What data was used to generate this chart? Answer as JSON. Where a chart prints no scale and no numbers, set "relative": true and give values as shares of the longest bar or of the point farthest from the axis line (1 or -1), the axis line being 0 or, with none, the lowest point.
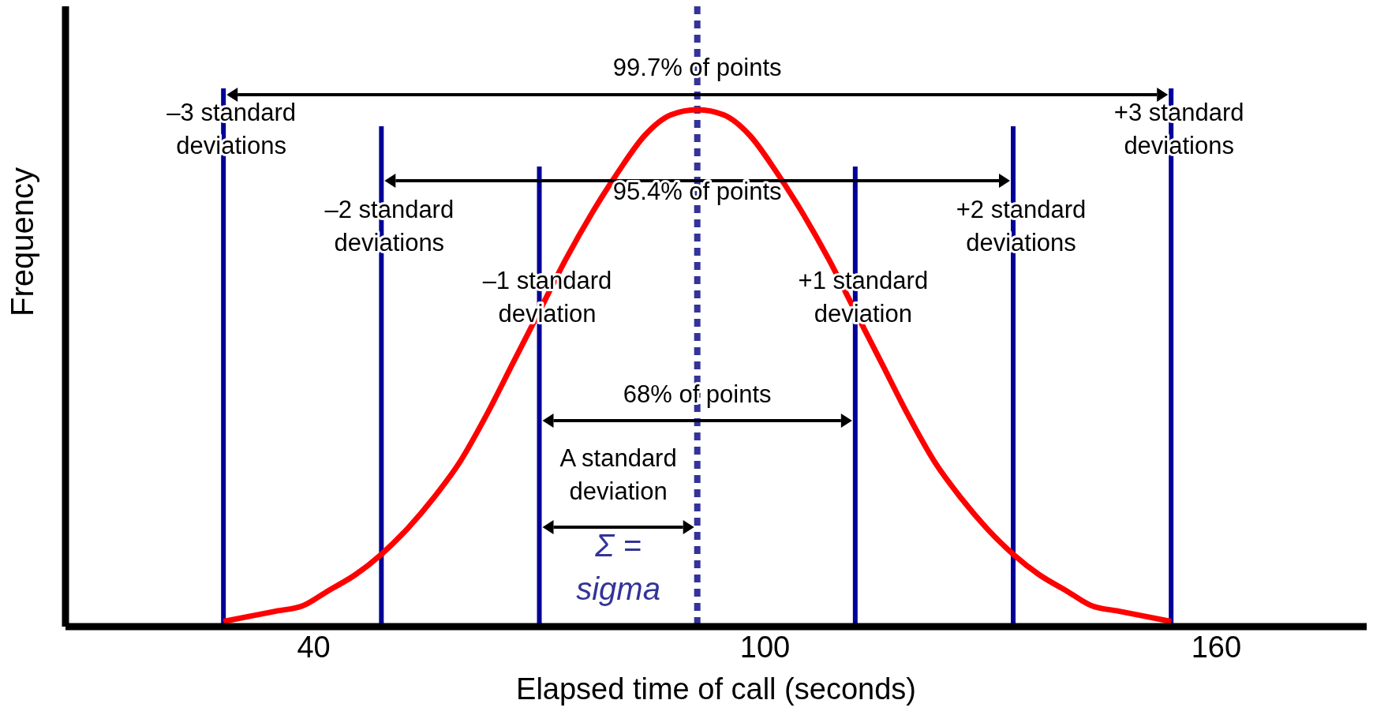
{
  "chart_data": {
    "type": "line",
    "relative": true,
    "xlabel": "Elapsed time of call (seconds)",
    "ylabel": "Frequency",
    "xlim": [
      7,
      180
    ],
    "xticks": [
      40,
      100,
      160
    ],
    "marker": "none",
    "tick_labels": "x",
    "series": [
      {
        "color": "#ff0000",
        "x": [
          28,
          31.5,
          35,
          38.5,
          42,
          45.5,
          49,
          52.5,
          56,
          59.5,
          63,
          66.5,
          70,
          73.5,
          77,
          80.5,
          84,
          87.5,
          91,
          94.5,
          98,
          101.5,
          105,
          108.5,
          112,
          115.5,
          119,
          122.5,
          126,
          129.5,
          133,
          136.5,
          140,
          143.5,
          147,
          150.5,
          154
        ],
        "values": [
          0.01,
          0.02,
          0.03,
          0.04,
          0.07,
          0.1,
          0.14,
          0.19,
          0.25,
          0.32,
          0.41,
          0.51,
          0.61,
          0.71,
          0.8,
          0.88,
          0.95,
          0.99,
          1,
          0.99,
          0.95,
          0.88,
          0.8,
          0.71,
          0.61,
          0.51,
          0.41,
          0.32,
          0.25,
          0.19,
          0.14,
          0.1,
          0.07,
          0.04,
          0.03,
          0.02,
          0.01
        ]
      }
    ],
    "ref_lines": [
      {
        "axis": "x",
        "value": 28,
        "label": "–3 standard deviations",
        "color": "#000099"
      },
      {
        "axis": "x",
        "value": 49,
        "label": "–2 standard deviations",
        "color": "#000099"
      },
      {
        "axis": "x",
        "value": 70,
        "label": "–1 standard deviation",
        "color": "#000099"
      },
      {
        "axis": "x",
        "value": 91,
        "color": "#333399",
        "line_style": "dotted"
      },
      {
        "axis": "x",
        "value": 112,
        "label": "+1 standard deviation",
        "color": "#000099"
      },
      {
        "axis": "x",
        "value": 133,
        "label": "+2 standard deviations",
        "color": "#000099"
      },
      {
        "axis": "x",
        "value": 154,
        "label": "+3 standard deviations",
        "color": "#000099"
      }
    ],
    "annotations": [
      "99.7% of points",
      "95.4% of points",
      "68% of points",
      "A standard deviation",
      "Σ = sigma"
    ]
  }
}
